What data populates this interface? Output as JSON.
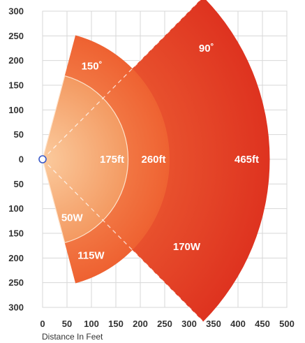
{
  "chart_data": {
    "type": "area",
    "xlabel": "Distance In Feet",
    "ylabel": "",
    "xlim": [
      0,
      500
    ],
    "ylim": [
      -300,
      300
    ],
    "x_ticks": [
      "0",
      "50",
      "100",
      "150",
      "200",
      "250",
      "300",
      "350",
      "400",
      "450",
      "500"
    ],
    "y_ticks": [
      "300",
      "250",
      "200",
      "150",
      "100",
      "50",
      "0",
      "50",
      "100",
      "150",
      "200",
      "250",
      "300"
    ],
    "grid": true,
    "origin_marker": [
      0,
      0
    ],
    "series": [
      {
        "power": "170W",
        "beam": "90˚",
        "range": "465ft",
        "radius": 465,
        "angle": 90,
        "color": "#e23b22"
      },
      {
        "power": "115W",
        "beam": "150˚",
        "range": "260ft",
        "radius": 260,
        "angle": 150,
        "color": "#f06a39"
      },
      {
        "power": "50W",
        "beam": "",
        "range": "175ft",
        "radius": 175,
        "angle": 150,
        "color": "#f5a070"
      }
    ]
  }
}
